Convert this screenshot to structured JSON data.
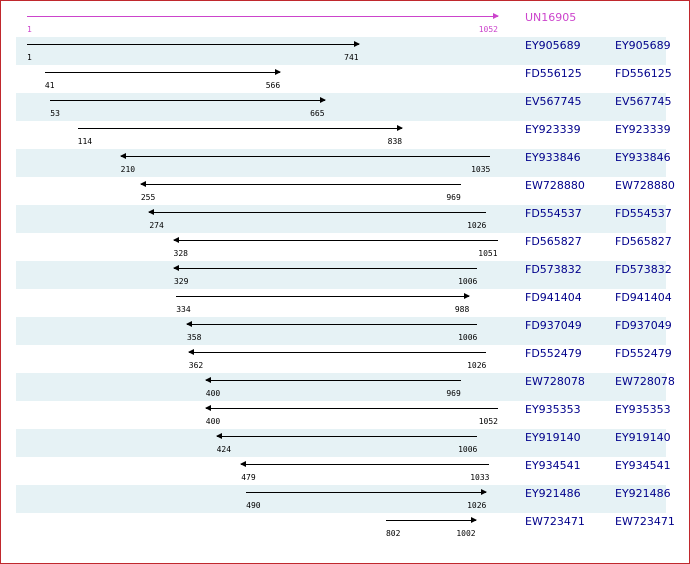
{
  "query": {
    "id": "UN16905",
    "start": 1,
    "end": 1052,
    "color": "#cc44cc"
  },
  "colors": {
    "arrow": "#000000",
    "label": "#00008b",
    "query": "#cc44cc",
    "shade": "#e6f2f5",
    "border": "#c0282d"
  },
  "alignments": [
    {
      "id": "EY905689",
      "link": "EY905689",
      "start": 1,
      "end": 741,
      "direction": "forward"
    },
    {
      "id": "FD556125",
      "link": "FD556125",
      "start": 41,
      "end": 566,
      "direction": "forward"
    },
    {
      "id": "EV567745",
      "link": "EV567745",
      "start": 53,
      "end": 665,
      "direction": "forward"
    },
    {
      "id": "EY923339",
      "link": "EY923339",
      "start": 114,
      "end": 838,
      "direction": "forward"
    },
    {
      "id": "EY933846",
      "link": "EY933846",
      "start": 210,
      "end": 1035,
      "direction": "reverse"
    },
    {
      "id": "EW728880",
      "link": "EW728880",
      "start": 255,
      "end": 969,
      "direction": "reverse"
    },
    {
      "id": "FD554537",
      "link": "FD554537",
      "start": 274,
      "end": 1026,
      "direction": "reverse"
    },
    {
      "id": "FD565827",
      "link": "FD565827",
      "start": 328,
      "end": 1051,
      "direction": "reverse"
    },
    {
      "id": "FD573832",
      "link": "FD573832",
      "start": 329,
      "end": 1006,
      "direction": "reverse"
    },
    {
      "id": "FD941404",
      "link": "FD941404",
      "start": 334,
      "end": 988,
      "direction": "forward"
    },
    {
      "id": "FD937049",
      "link": "FD937049",
      "start": 358,
      "end": 1006,
      "direction": "reverse"
    },
    {
      "id": "FD552479",
      "link": "FD552479",
      "start": 362,
      "end": 1026,
      "direction": "reverse"
    },
    {
      "id": "EW728078",
      "link": "EW728078",
      "start": 400,
      "end": 969,
      "direction": "reverse"
    },
    {
      "id": "EY935353",
      "link": "EY935353",
      "start": 400,
      "end": 1052,
      "direction": "reverse"
    },
    {
      "id": "EY919140",
      "link": "EY919140",
      "start": 424,
      "end": 1006,
      "direction": "reverse"
    },
    {
      "id": "EY934541",
      "link": "EY934541",
      "start": 479,
      "end": 1033,
      "direction": "reverse"
    },
    {
      "id": "EY921486",
      "link": "EY921486",
      "start": 490,
      "end": 1026,
      "direction": "forward"
    },
    {
      "id": "EW723471",
      "link": "EW723471",
      "start": 802,
      "end": 1002,
      "direction": "forward"
    }
  ]
}
